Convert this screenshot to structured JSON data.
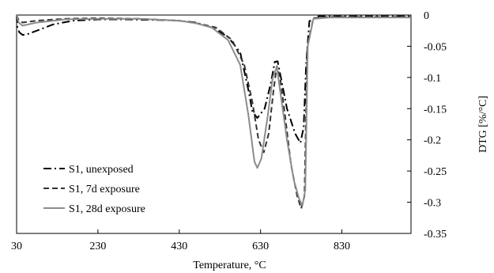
{
  "chart_data": {
    "type": "line",
    "xlabel": "Temperature, °C",
    "ylabel": "DTG [%/°C]",
    "xlim": [
      30,
      1000
    ],
    "ylim": [
      -0.35,
      0
    ],
    "x_ticks": [
      30,
      230,
      430,
      630,
      830
    ],
    "x_tick_labels": [
      "30",
      "230",
      "430",
      "630",
      "830"
    ],
    "y_ticks": [
      0,
      -0.05,
      -0.1,
      -0.15,
      -0.2,
      -0.25,
      -0.3,
      -0.35
    ],
    "y_tick_labels": [
      "0",
      "-0.05",
      "-0.1",
      "-0.15",
      "-0.2",
      "-0.25",
      "-0.3",
      "-0.35"
    ],
    "y_axis_side": "right",
    "grid": false,
    "legend_position": "bottom-left",
    "series": [
      {
        "name": "S1, unexposed",
        "color": "#000000",
        "dash": "dashdot",
        "points": [
          [
            30,
            0
          ],
          [
            32,
            -0.02
          ],
          [
            37,
            -0.028
          ],
          [
            45,
            -0.032
          ],
          [
            60,
            -0.03
          ],
          [
            80,
            -0.025
          ],
          [
            120,
            -0.015
          ],
          [
            170,
            -0.009
          ],
          [
            230,
            -0.007
          ],
          [
            300,
            -0.007
          ],
          [
            380,
            -0.008
          ],
          [
            430,
            -0.009
          ],
          [
            470,
            -0.012
          ],
          [
            510,
            -0.02
          ],
          [
            550,
            -0.035
          ],
          [
            580,
            -0.06
          ],
          [
            600,
            -0.12
          ],
          [
            610,
            -0.155
          ],
          [
            622,
            -0.165
          ],
          [
            640,
            -0.15
          ],
          [
            655,
            -0.11
          ],
          [
            665,
            -0.075
          ],
          [
            672,
            -0.074
          ],
          [
            680,
            -0.1
          ],
          [
            695,
            -0.15
          ],
          [
            715,
            -0.19
          ],
          [
            728,
            -0.205
          ],
          [
            736,
            -0.18
          ],
          [
            742,
            -0.08
          ],
          [
            750,
            -0.01
          ],
          [
            770,
            -0.002
          ],
          [
            850,
            -0.002
          ],
          [
            1000,
            -0.002
          ]
        ]
      },
      {
        "name": "S1, 7d exposure",
        "color": "#333333",
        "dash": "dashed",
        "points": [
          [
            30,
            0
          ],
          [
            35,
            -0.008
          ],
          [
            45,
            -0.012
          ],
          [
            80,
            -0.009
          ],
          [
            150,
            -0.006
          ],
          [
            230,
            -0.005
          ],
          [
            330,
            -0.006
          ],
          [
            430,
            -0.009
          ],
          [
            480,
            -0.014
          ],
          [
            520,
            -0.02
          ],
          [
            560,
            -0.04
          ],
          [
            590,
            -0.08
          ],
          [
            610,
            -0.14
          ],
          [
            625,
            -0.2
          ],
          [
            638,
            -0.22
          ],
          [
            650,
            -0.19
          ],
          [
            662,
            -0.12
          ],
          [
            670,
            -0.082
          ],
          [
            678,
            -0.1
          ],
          [
            690,
            -0.16
          ],
          [
            705,
            -0.24
          ],
          [
            720,
            -0.29
          ],
          [
            730,
            -0.31
          ],
          [
            738,
            -0.29
          ],
          [
            745,
            -0.05
          ],
          [
            760,
            -0.005
          ],
          [
            800,
            -0.003
          ],
          [
            1000,
            -0.003
          ]
        ]
      },
      {
        "name": "S1, 28d exposure",
        "color": "#8c8c8c",
        "dash": "solid",
        "points": [
          [
            30,
            0
          ],
          [
            35,
            -0.012
          ],
          [
            45,
            -0.017
          ],
          [
            80,
            -0.012
          ],
          [
            150,
            -0.007
          ],
          [
            230,
            -0.006
          ],
          [
            330,
            -0.006
          ],
          [
            430,
            -0.009
          ],
          [
            470,
            -0.013
          ],
          [
            510,
            -0.02
          ],
          [
            550,
            -0.04
          ],
          [
            580,
            -0.08
          ],
          [
            600,
            -0.16
          ],
          [
            615,
            -0.235
          ],
          [
            622,
            -0.245
          ],
          [
            632,
            -0.23
          ],
          [
            648,
            -0.16
          ],
          [
            660,
            -0.1
          ],
          [
            670,
            -0.083
          ],
          [
            680,
            -0.13
          ],
          [
            695,
            -0.2
          ],
          [
            712,
            -0.265
          ],
          [
            725,
            -0.295
          ],
          [
            733,
            -0.305
          ],
          [
            740,
            -0.28
          ],
          [
            746,
            -0.05
          ],
          [
            760,
            -0.006
          ],
          [
            800,
            -0.004
          ],
          [
            1000,
            -0.004
          ]
        ]
      }
    ]
  }
}
